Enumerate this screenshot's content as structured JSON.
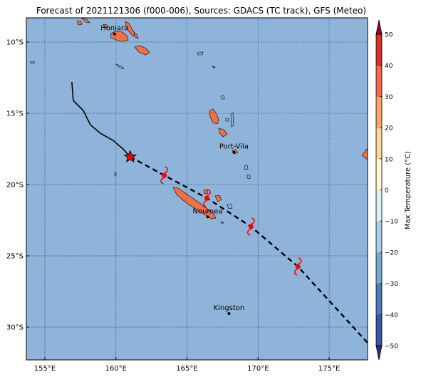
{
  "title": "Forecast of 2021121306 (f000-006), Sources: GDACS (TC track), GFS (Meteo)",
  "map": {
    "lon_range": [
      153.7,
      177.7
    ],
    "lat_range": [
      -32.3,
      -8.3
    ],
    "lon_ticks": [
      {
        "value": 155,
        "label": "155°E"
      },
      {
        "value": 160,
        "label": "160°E"
      },
      {
        "value": 165,
        "label": "165°E"
      },
      {
        "value": 170,
        "label": "170°E"
      },
      {
        "value": 175,
        "label": "175°E"
      }
    ],
    "lat_ticks": [
      {
        "value": -10,
        "label": "10°S"
      },
      {
        "value": -15,
        "label": "15°S"
      },
      {
        "value": -20,
        "label": "20°S"
      },
      {
        "value": -25,
        "label": "25°S"
      },
      {
        "value": -30,
        "label": "30°S"
      }
    ],
    "gridlines": true,
    "background_color": "#8fb4da",
    "land_color": "#f07146"
  },
  "cities": [
    {
      "name": "Honiara",
      "lon": 159.9,
      "lat": -9.43
    },
    {
      "name": "Port-Vila",
      "lon": 168.3,
      "lat": -17.73
    },
    {
      "name": "Noumea",
      "lon": 166.45,
      "lat": -22.27
    },
    {
      "name": "Kingston",
      "lon": 167.95,
      "lat": -29.05
    }
  ],
  "track": {
    "past": [
      [
        156.9,
        -12.8
      ],
      [
        157.0,
        -14.1
      ],
      [
        157.7,
        -14.8
      ],
      [
        158.2,
        -15.8
      ],
      [
        158.9,
        -16.4
      ],
      [
        159.8,
        -16.9
      ],
      [
        160.5,
        -17.5
      ],
      [
        161.0,
        -18.05
      ]
    ],
    "current": [
      161.0,
      -18.05
    ],
    "forecast": [
      [
        161.0,
        -18.05
      ],
      [
        163.4,
        -19.35
      ],
      [
        166.4,
        -20.95
      ],
      [
        169.5,
        -22.95
      ],
      [
        172.8,
        -25.75
      ],
      [
        177.7,
        -31.1
      ]
    ],
    "storm_positions": [
      [
        163.4,
        -19.35
      ],
      [
        166.4,
        -20.95
      ],
      [
        169.5,
        -22.95
      ],
      [
        172.8,
        -25.75
      ]
    ]
  },
  "colorbar": {
    "label": "Max Temperature (°C)",
    "min": -50,
    "max": 50,
    "ticks": [
      "50",
      "40",
      "30",
      "20",
      "10",
      "0",
      "−10",
      "−20",
      "−30",
      "−40",
      "−50"
    ],
    "colors": [
      "#2b2f84",
      "#3a56a5",
      "#4d7cb8",
      "#79a8cf",
      "#a9cfe5",
      "#dbeff6",
      "#fff8d3",
      "#fdd797",
      "#f9a56b",
      "#ef6b46",
      "#d7302a",
      "#a50026"
    ]
  }
}
